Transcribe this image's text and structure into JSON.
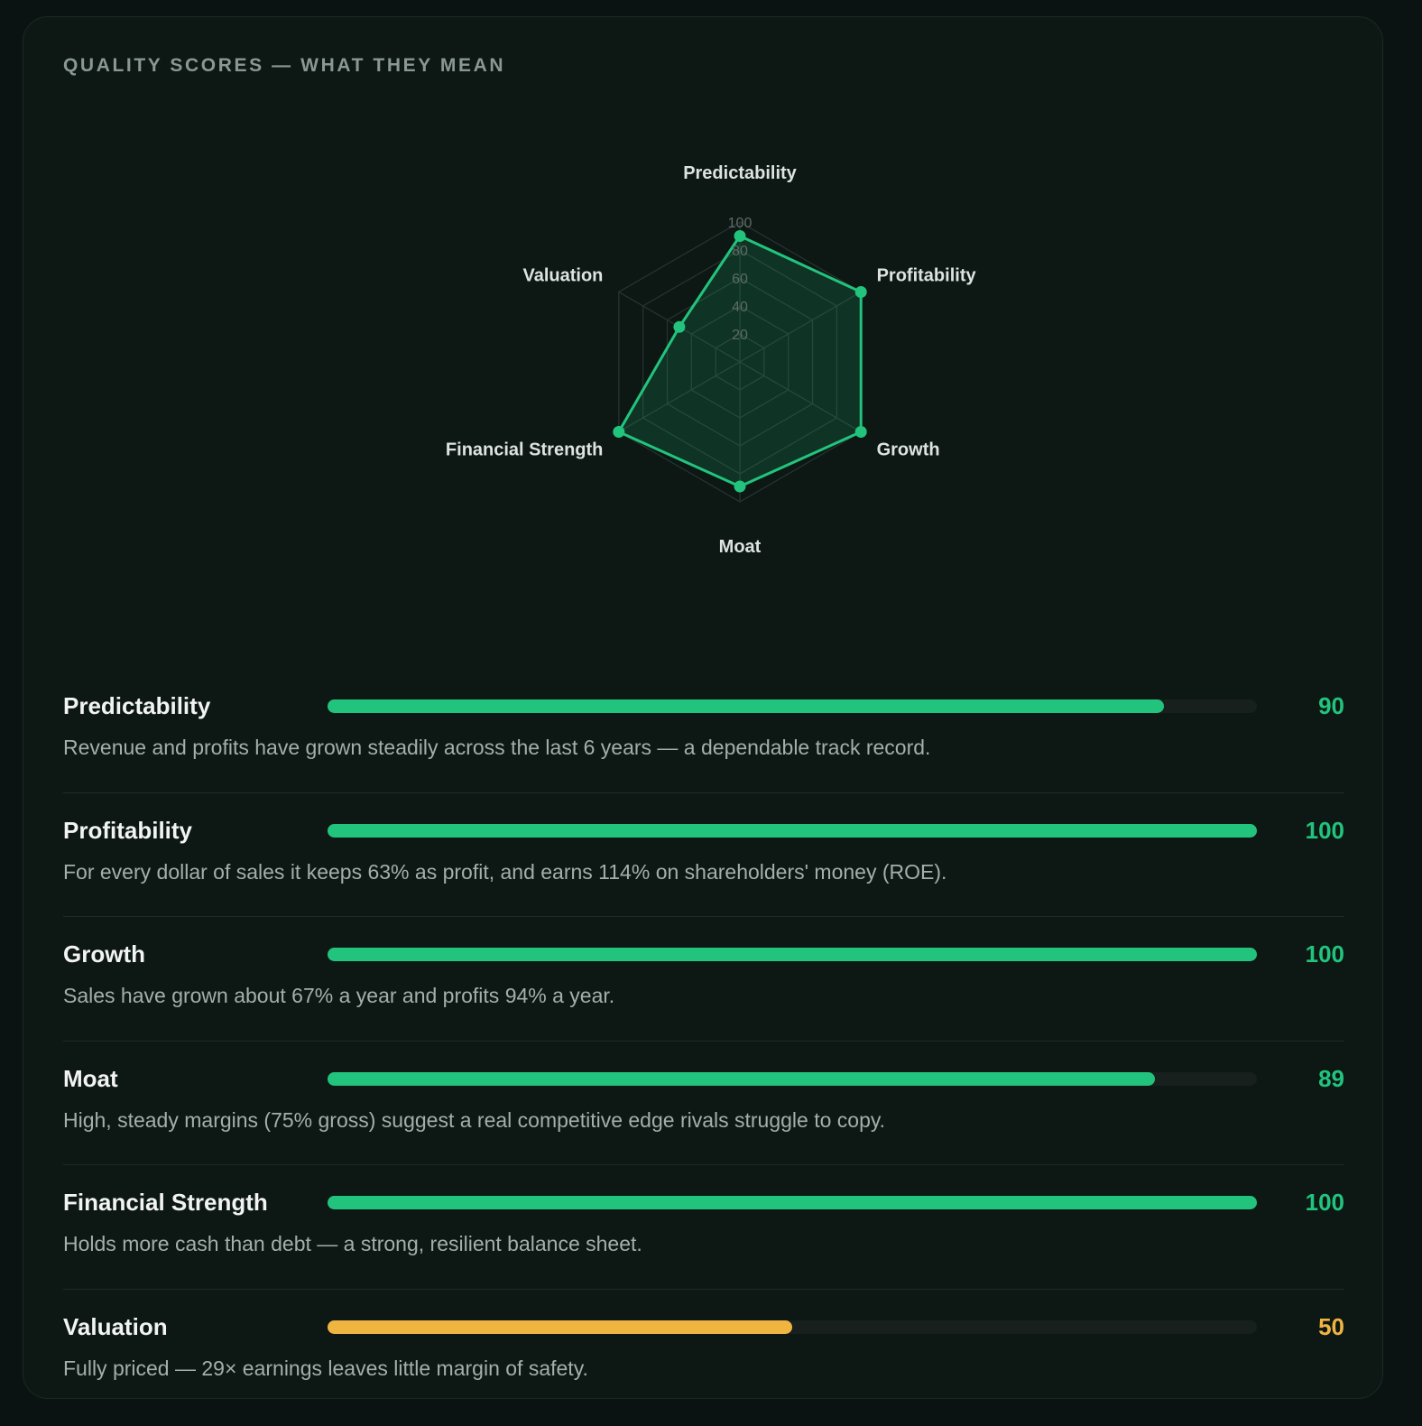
{
  "section": {
    "title": "QUALITY SCORES — WHAT THEY MEAN"
  },
  "colors": {
    "accent_green": "#22c47d",
    "accent_amber": "#f0b540",
    "background": "#0d1714"
  },
  "chart_data": {
    "type": "radar",
    "title": "",
    "axes": [
      "Predictability",
      "Profitability",
      "Growth",
      "Moat",
      "Financial Strength",
      "Valuation"
    ],
    "values": [
      90,
      100,
      100,
      89,
      100,
      50
    ],
    "ticks": [
      20,
      40,
      60,
      80,
      100
    ],
    "rlim": [
      0,
      100
    ],
    "grid": true
  },
  "scores": [
    {
      "name": "Predictability",
      "value": "90",
      "fill": 90,
      "color": "#22c47d",
      "description": "Revenue and profits have grown steadily across the last 6 years — a dependable track record."
    },
    {
      "name": "Profitability",
      "value": "100",
      "fill": 100,
      "color": "#22c47d",
      "description": "For every dollar of sales it keeps 63% as profit, and earns 114% on shareholders' money (ROE)."
    },
    {
      "name": "Growth",
      "value": "100",
      "fill": 100,
      "color": "#22c47d",
      "description": "Sales have grown about 67% a year and profits 94% a year."
    },
    {
      "name": "Moat",
      "value": "89",
      "fill": 89,
      "color": "#22c47d",
      "description": "High, steady margins (75% gross) suggest a real competitive edge rivals struggle to copy."
    },
    {
      "name": "Financial Strength",
      "value": "100",
      "fill": 100,
      "color": "#22c47d",
      "description": "Holds more cash than debt — a strong, resilient balance sheet."
    },
    {
      "name": "Valuation",
      "value": "50",
      "fill": 50,
      "color": "#f0b540",
      "description": "Fully priced — 29× earnings leaves little margin of safety."
    }
  ]
}
